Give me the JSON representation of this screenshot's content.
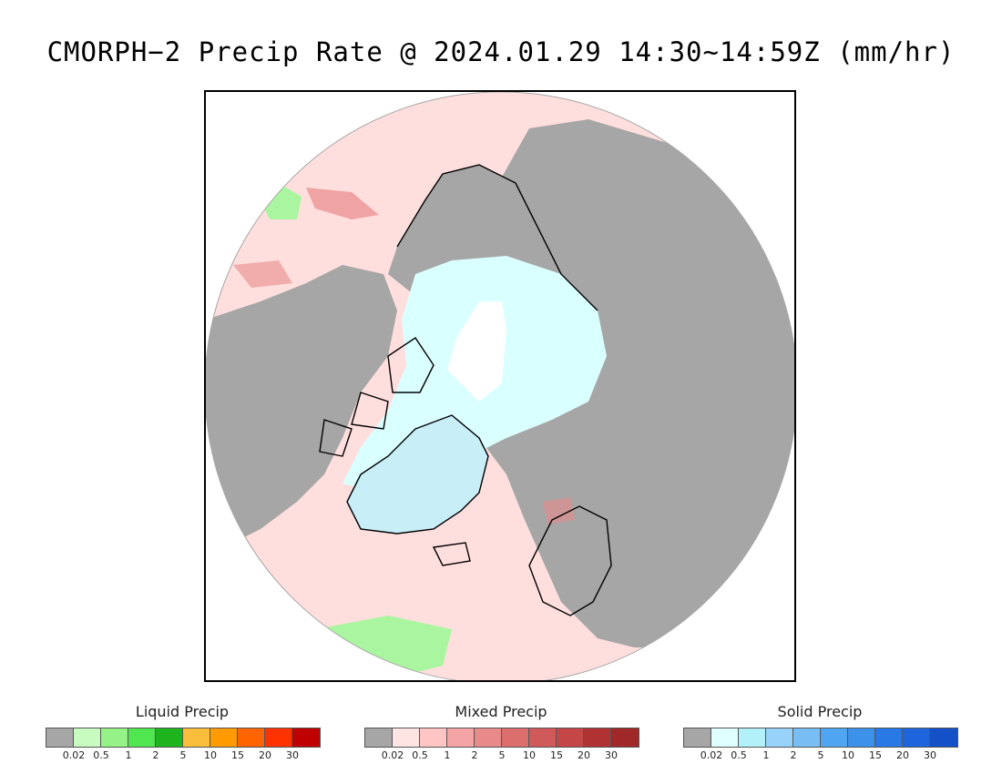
{
  "title": "CMORPH−2 Precip Rate @ 2024.01.29 14:30~14:59Z (mm/hr)",
  "map": {
    "projection": "north-polar-stereographic",
    "colors": {
      "no_precip": "#a6a6a6",
      "ocean_light_precip": "#ffdede",
      "arctic_ice_light_snow": "#daffff",
      "pole_nodata": "#ffffff",
      "greenland_ice": "#c8eef8",
      "liquid_patch": "#aaf5a0",
      "mixed_heavy": "#e88a8a"
    }
  },
  "legends": [
    {
      "title": "Liquid Precip",
      "colors": [
        "#a6a6a6",
        "#c8fbc0",
        "#95f287",
        "#50e650",
        "#1eb41e",
        "#fabd3c",
        "#ff9a00",
        "#ff6400",
        "#ff3200",
        "#c00000"
      ],
      "tick_labels": [
        "0.02",
        "0.5",
        "1",
        "2",
        "5",
        "10",
        "15",
        "20",
        "30"
      ]
    },
    {
      "title": "Mixed Precip",
      "colors": [
        "#a6a6a6",
        "#ffe4e4",
        "#ffc4c4",
        "#f4a4a4",
        "#e88a8a",
        "#dc6e6e",
        "#d05a5a",
        "#c44646",
        "#b03232",
        "#a02828"
      ],
      "tick_labels": [
        "0.02",
        "0.5",
        "1",
        "2",
        "5",
        "10",
        "15",
        "20",
        "30"
      ]
    },
    {
      "title": "Solid Precip",
      "colors": [
        "#a6a6a6",
        "#e0ffff",
        "#b2f0fa",
        "#96d2fa",
        "#78bef5",
        "#50a5f0",
        "#3c91eb",
        "#2878e6",
        "#1e64dc",
        "#1450c8"
      ],
      "tick_labels": [
        "0.02",
        "0.5",
        "1",
        "2",
        "5",
        "10",
        "15",
        "20",
        "30"
      ]
    }
  ]
}
